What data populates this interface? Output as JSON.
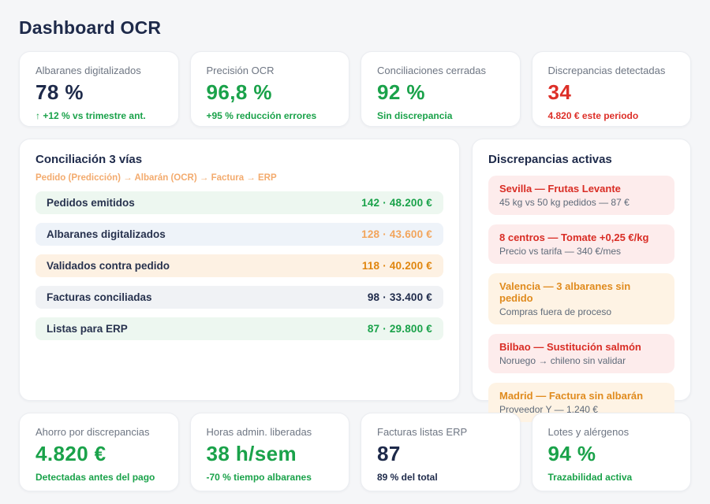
{
  "page": {
    "title": "Dashboard OCR"
  },
  "colors": {
    "navy": "#1e2a4a",
    "green": "#1aa24a",
    "red": "#dd2f28",
    "orange": "#e0860f",
    "orange_light": "#f2a55c",
    "subtitle_orange": "#f3ab6e",
    "page_bg": "#f5f6f8",
    "row_bg_green": "#edf7f0",
    "row_bg_blue": "#eef3f9",
    "row_bg_peach": "#fdf1e3",
    "row_bg_gray": "#f0f2f5",
    "alert_bg_red": "#fdecec",
    "alert_bg_orange": "#fef3e4"
  },
  "top_cards": [
    {
      "label": "Albaranes digitalizados",
      "value": "78 %",
      "sub": "↑ +12 % vs trimestre ant."
    },
    {
      "label": "Precisión OCR",
      "value": "96,8 %",
      "sub": "+95 % reducción errores"
    },
    {
      "label": "Conciliaciones cerradas",
      "value": "92 %",
      "sub": "Sin discrepancia"
    },
    {
      "label": "Discrepancias detectadas",
      "value": "34",
      "sub": "4.820 € este periodo"
    }
  ],
  "funnel": {
    "title": "Conciliación 3 vías",
    "subtitle": "Pedido (Predicción) → Albarán (OCR) → Factura → ERP",
    "rows": [
      {
        "label": "Pedidos emitidos",
        "value": "142 · 48.200 €"
      },
      {
        "label": "Albaranes digitalizados",
        "value": "128 · 43.600 €"
      },
      {
        "label": "Validados contra pedido",
        "value": "118 · 40.200 €"
      },
      {
        "label": "Facturas conciliadas",
        "value": "98 · 33.400 €"
      },
      {
        "label": "Listas para ERP",
        "value": "87 · 29.800 €"
      }
    ]
  },
  "discrepancies": {
    "title": "Discrepancias activas",
    "items": [
      {
        "title": "Sevilla — Frutas Levante",
        "sub": "45 kg vs 50 kg pedidos — 87 €",
        "severity": "red"
      },
      {
        "title": "8 centros — Tomate +0,25 €/kg",
        "sub": "Precio vs tarifa — 340 €/mes",
        "severity": "red"
      },
      {
        "title": "Valencia — 3 albaranes sin pedido",
        "sub": "Compras fuera de proceso",
        "severity": "orange"
      },
      {
        "title": "Bilbao — Sustitución salmón",
        "sub": "Noruego → chileno sin validar",
        "severity": "red"
      },
      {
        "title": "Madrid — Factura sin albarán",
        "sub": "Proveedor Y — 1.240 €",
        "severity": "orange"
      }
    ]
  },
  "bottom_cards": [
    {
      "label": "Ahorro por discrepancias",
      "value": "4.820 €",
      "sub": "Detectadas antes del pago"
    },
    {
      "label": "Horas admin. liberadas",
      "value": "38 h/sem",
      "sub": "-70 % tiempo albaranes"
    },
    {
      "label": "Facturas listas ERP",
      "value": "87",
      "sub": "89 % del total"
    },
    {
      "label": "Lotes y alérgenos",
      "value": "94 %",
      "sub": "Trazabilidad activa"
    }
  ]
}
